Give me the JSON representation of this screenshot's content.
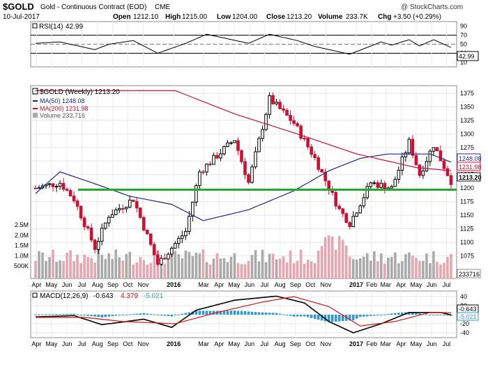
{
  "header": {
    "symbol": "$GOLD",
    "name": "Gold - Continuous Contract (EOD)",
    "exchange": "CME",
    "date": "10-Jul-2017",
    "open_label": "Open",
    "open": "1212.10",
    "high_label": "High",
    "high": "1215.00",
    "low_label": "Low",
    "low": "1204.00",
    "close_label": "Close",
    "close": "1213.20",
    "volume_label": "Volume",
    "volume": "233.7K",
    "chg_label": "Chg",
    "chg": "+3.50 (+0.29%)",
    "credit": "@ StockCharts.com"
  },
  "colors": {
    "up": "#000000",
    "down": "#cc1133",
    "ma50": "#1a2a8c",
    "ma200": "#cc1133",
    "support": "#22aa33",
    "vol_up": "#aaaaaa",
    "vol_down": "#e6a6b0",
    "macd_hist": "#3399cc",
    "macd_signal": "#dd1111"
  },
  "rsi": {
    "label": "RSI(14)",
    "value": "42.99",
    "ticks": [
      "90",
      "70",
      "50",
      "30",
      "10"
    ]
  },
  "price_legend": {
    "title": "$GOLD (Weekly) 1213.20",
    "ma50": "MA(50) 1248.08",
    "ma200": "MA(200) 1231.98",
    "volume": "Volume 233,716"
  },
  "macd": {
    "label": "MACD(12,26,9)",
    "v1": "-0.643",
    "v2": "4.379",
    "v3": "-5.021",
    "ticks": [
      "40",
      "20",
      "0",
      "-20",
      "-40"
    ],
    "badge_value": "-0.643",
    "badge_hist": "-5.021"
  },
  "x_labels": [
    "Apr",
    "May",
    "Jun",
    "Jul",
    "Aug",
    "Sep",
    "Oct",
    "Nov",
    "2016",
    "Mar",
    "Apr",
    "May",
    "Jun",
    "Jul",
    "Aug",
    "Sep",
    "Oct",
    "Nov",
    "2017",
    "Feb",
    "Mar",
    "Apr",
    "May",
    "Jun",
    "Jul"
  ],
  "chart_data": {
    "type": "candlestick",
    "title": "$GOLD (Weekly) 1213.20",
    "price_ticks": [
      1075,
      1100,
      1125,
      1150,
      1175,
      1200,
      1225,
      1250,
      1275,
      1300,
      1325,
      1350,
      1375
    ],
    "volume_ticks": [
      "2.5M",
      "2.0M",
      "1.5M",
      "1.0M",
      "500K"
    ],
    "price_labels": {
      "ma50": "1248.08",
      "ma200": "1231.98",
      "last": "1213.20",
      "volume": "233716"
    },
    "support_level": 1197,
    "ylim": [
      1060,
      1390
    ],
    "anchors": [
      {
        "d": "2015-03-30",
        "p": 1200
      },
      {
        "d": "2015-05-18",
        "p": 1210
      },
      {
        "d": "2015-06-15",
        "p": 1180
      },
      {
        "d": "2015-07-27",
        "p": 1090
      },
      {
        "d": "2015-08-24",
        "p": 1150
      },
      {
        "d": "2015-10-12",
        "p": 1180
      },
      {
        "d": "2015-11-30",
        "p": 1060
      },
      {
        "d": "2016-01-25",
        "p": 1120
      },
      {
        "d": "2016-02-22",
        "p": 1230
      },
      {
        "d": "2016-05-02",
        "p": 1290
      },
      {
        "d": "2016-05-30",
        "p": 1210
      },
      {
        "d": "2016-07-11",
        "p": 1365
      },
      {
        "d": "2016-08-29",
        "p": 1320
      },
      {
        "d": "2016-10-10",
        "p": 1255
      },
      {
        "d": "2016-11-28",
        "p": 1160
      },
      {
        "d": "2016-12-19",
        "p": 1135
      },
      {
        "d": "2017-01-30",
        "p": 1210
      },
      {
        "d": "2017-03-13",
        "p": 1200
      },
      {
        "d": "2017-04-17",
        "p": 1285
      },
      {
        "d": "2017-05-08",
        "p": 1225
      },
      {
        "d": "2017-06-05",
        "p": 1280
      },
      {
        "d": "2017-07-10",
        "p": 1213
      }
    ],
    "ma50": [
      {
        "d": "2015-03-30",
        "p": 1190
      },
      {
        "d": "2015-05-18",
        "p": 1230
      },
      {
        "d": "2015-07-27",
        "p": 1208
      },
      {
        "d": "2015-10-05",
        "p": 1185
      },
      {
        "d": "2015-12-28",
        "p": 1170
      },
      {
        "d": "2016-02-29",
        "p": 1140
      },
      {
        "d": "2016-05-30",
        "p": 1160
      },
      {
        "d": "2016-08-29",
        "p": 1195
      },
      {
        "d": "2016-11-07",
        "p": 1232
      },
      {
        "d": "2017-01-09",
        "p": 1255
      },
      {
        "d": "2017-03-06",
        "p": 1263
      },
      {
        "d": "2017-05-29",
        "p": 1263
      },
      {
        "d": "2017-07-10",
        "p": 1248
      }
    ],
    "ma200": [
      {
        "d": "2015-03-30",
        "p": 1500
      },
      {
        "d": "2015-08-24",
        "p": 1430
      },
      {
        "d": "2016-01-04",
        "p": 1380
      },
      {
        "d": "2016-05-02",
        "p": 1337
      },
      {
        "d": "2016-09-05",
        "p": 1300
      },
      {
        "d": "2017-01-02",
        "p": 1263
      },
      {
        "d": "2017-05-01",
        "p": 1238
      },
      {
        "d": "2017-07-10",
        "p": 1232
      }
    ],
    "rsi_line": [
      {
        "d": "2015-03-30",
        "v": 52
      },
      {
        "d": "2015-05-18",
        "v": 55
      },
      {
        "d": "2015-07-27",
        "v": 38
      },
      {
        "d": "2015-08-24",
        "v": 50
      },
      {
        "d": "2015-10-12",
        "v": 58
      },
      {
        "d": "2015-11-30",
        "v": 30
      },
      {
        "d": "2016-01-25",
        "v": 52
      },
      {
        "d": "2016-03-07",
        "v": 72
      },
      {
        "d": "2016-05-30",
        "v": 52
      },
      {
        "d": "2016-07-11",
        "v": 72
      },
      {
        "d": "2016-09-05",
        "v": 58
      },
      {
        "d": "2016-10-10",
        "v": 45
      },
      {
        "d": "2016-12-19",
        "v": 28
      },
      {
        "d": "2017-02-20",
        "v": 55
      },
      {
        "d": "2017-03-13",
        "v": 48
      },
      {
        "d": "2017-04-17",
        "v": 60
      },
      {
        "d": "2017-05-08",
        "v": 46
      },
      {
        "d": "2017-06-05",
        "v": 60
      },
      {
        "d": "2017-07-10",
        "v": 43
      }
    ],
    "macd_line": [
      {
        "d": "2015-03-30",
        "v": -5
      },
      {
        "d": "2015-06-15",
        "v": -2
      },
      {
        "d": "2015-08-10",
        "v": -22
      },
      {
        "d": "2015-11-02",
        "v": -10
      },
      {
        "d": "2015-12-28",
        "v": -28
      },
      {
        "d": "2016-02-15",
        "v": 10
      },
      {
        "d": "2016-05-02",
        "v": 32
      },
      {
        "d": "2016-07-25",
        "v": 41
      },
      {
        "d": "2016-09-19",
        "v": 26
      },
      {
        "d": "2016-11-07",
        "v": -15
      },
      {
        "d": "2016-12-26",
        "v": -40
      },
      {
        "d": "2017-02-20",
        "v": -20
      },
      {
        "d": "2017-04-17",
        "v": 5
      },
      {
        "d": "2017-06-19",
        "v": 5
      },
      {
        "d": "2017-07-10",
        "v": -0.6
      }
    ],
    "macd_signal": [
      {
        "d": "2015-03-30",
        "v": -6
      },
      {
        "d": "2015-07-06",
        "v": -6
      },
      {
        "d": "2015-09-21",
        "v": -15
      },
      {
        "d": "2016-01-04",
        "v": -20
      },
      {
        "d": "2016-03-28",
        "v": 5
      },
      {
        "d": "2016-06-27",
        "v": 28
      },
      {
        "d": "2016-08-29",
        "v": 40
      },
      {
        "d": "2016-11-07",
        "v": 18
      },
      {
        "d": "2017-01-09",
        "v": -25
      },
      {
        "d": "2017-03-20",
        "v": -15
      },
      {
        "d": "2017-05-29",
        "v": 5
      },
      {
        "d": "2017-07-10",
        "v": 4.4
      }
    ]
  }
}
